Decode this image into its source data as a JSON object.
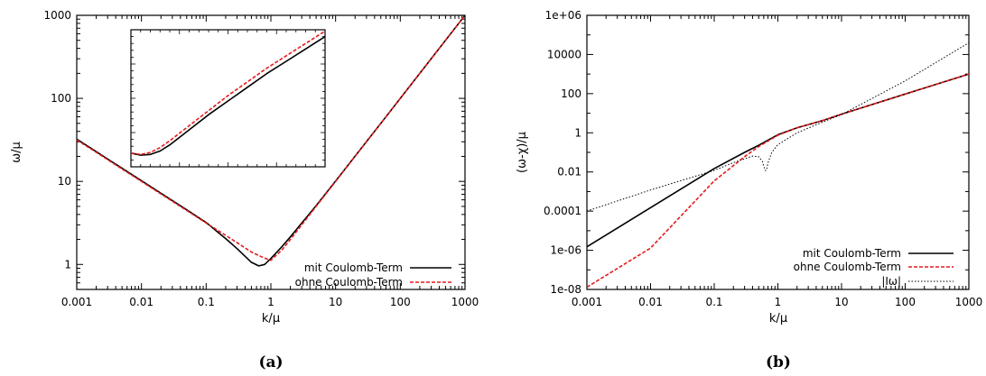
{
  "chart_data": [
    {
      "panel": "a",
      "type": "line",
      "caption": "(a)",
      "xlabel": "k/μ",
      "ylabel": "ω/μ",
      "xscale": "log",
      "yscale": "log",
      "xlim": [
        0.001,
        1000
      ],
      "ylim": [
        0.5,
        1000
      ],
      "xticks": [
        "0.001",
        "0.01",
        "0.1",
        "1",
        "10",
        "100",
        "1000"
      ],
      "yticks": [
        "1",
        "10",
        "100",
        "1000"
      ],
      "legend": "bottom-right",
      "series": [
        {
          "name": "mit Coulomb-Term",
          "color": "#000000",
          "style": "solid",
          "x": [
            0.001,
            0.002,
            0.005,
            0.01,
            0.02,
            0.05,
            0.1,
            0.2,
            0.3,
            0.5,
            0.65,
            0.8,
            1,
            1.5,
            2,
            3,
            5,
            10,
            20,
            50,
            100,
            200,
            500,
            1000
          ],
          "y": [
            32.3,
            22.8,
            14.4,
            10.2,
            7.2,
            4.55,
            3.2,
            2.05,
            1.55,
            1.06,
            0.96,
            1.0,
            1.18,
            1.65,
            2.15,
            3.15,
            5.1,
            10.1,
            20.1,
            50,
            100,
            200,
            500,
            1000
          ]
        },
        {
          "name": "ohne Coulomb-Term",
          "color": "#e41a1c",
          "style": "dashed",
          "x": [
            0.001,
            0.002,
            0.005,
            0.01,
            0.02,
            0.05,
            0.1,
            0.2,
            0.3,
            0.5,
            0.65,
            0.8,
            1,
            1.5,
            2,
            3,
            5,
            10,
            20,
            50,
            100,
            200,
            500,
            1000
          ],
          "y": [
            31.6,
            22.4,
            14.1,
            10.0,
            7.07,
            4.47,
            3.16,
            2.24,
            1.83,
            1.41,
            1.28,
            1.19,
            1.12,
            1.51,
            2.0,
            3.0,
            5.0,
            10.0,
            20.0,
            50,
            100,
            200,
            500,
            1000
          ]
        }
      ],
      "inset": {
        "xlim": [
          0,
          1
        ],
        "ylim": [
          0,
          1
        ],
        "series": [
          {
            "name": "mit Coulomb-Term",
            "color": "#000000",
            "style": "solid",
            "x": [
              0,
              0.05,
              0.1,
              0.15,
              0.2,
              0.3,
              0.4,
              0.5,
              0.6,
              0.7,
              0.8,
              0.9,
              1.0
            ],
            "y": [
              0.1,
              0.085,
              0.09,
              0.115,
              0.16,
              0.27,
              0.38,
              0.48,
              0.58,
              0.68,
              0.77,
              0.86,
              0.95
            ]
          },
          {
            "name": "ohne Coulomb-Term",
            "color": "#e41a1c",
            "style": "dashed",
            "x": [
              0,
              0.05,
              0.1,
              0.15,
              0.2,
              0.3,
              0.4,
              0.5,
              0.6,
              0.7,
              0.8,
              0.9,
              1.0
            ],
            "y": [
              0.1,
              0.09,
              0.105,
              0.14,
              0.19,
              0.3,
              0.41,
              0.52,
              0.62,
              0.72,
              0.81,
              0.9,
              0.99
            ]
          }
        ]
      }
    },
    {
      "panel": "b",
      "type": "line",
      "caption": "(b)",
      "xlabel": "k/μ",
      "ylabel": "(ω-χ)/μ",
      "xscale": "log",
      "yscale": "log",
      "xlim": [
        0.001,
        1000
      ],
      "ylim": [
        1e-08,
        1000000.0
      ],
      "xticks": [
        "0.001",
        "0.01",
        "0.1",
        "1",
        "10",
        "100",
        "1000"
      ],
      "yticks": [
        "1e-08",
        "1e-06",
        "0.0001",
        "0.01",
        "1",
        "100",
        "10000",
        "1e+06"
      ],
      "legend": "bottom-right",
      "series": [
        {
          "name": "mit Coulomb-Term",
          "color": "#000000",
          "style": "solid",
          "x": [
            0.001,
            0.01,
            0.1,
            0.3,
            0.5,
            1,
            2,
            5,
            10,
            100,
            1000
          ],
          "y": [
            1.5e-06,
            0.00015,
            0.015,
            0.1,
            0.23,
            0.8,
            1.8,
            4.2,
            9,
            95,
            1000
          ]
        },
        {
          "name": "ohne Coulomb-Term",
          "color": "#e41a1c",
          "style": "dashed",
          "x": [
            0.001,
            0.01,
            0.1,
            0.3,
            0.5,
            1,
            2,
            5,
            10,
            100,
            1000
          ],
          "y": [
            1.3e-08,
            1.3e-06,
            0.0035,
            0.06,
            0.2,
            0.75,
            1.8,
            4.2,
            9,
            95,
            1000
          ]
        },
        {
          "name": "|Iω|",
          "color": "#000000",
          "style": "dotted",
          "x": [
            0.001,
            0.01,
            0.05,
            0.1,
            0.2,
            0.4,
            0.5,
            0.57,
            0.6,
            0.63,
            0.66,
            0.7,
            0.8,
            1,
            2,
            5,
            10,
            100,
            1000
          ],
          "y": [
            0.0001,
            0.0012,
            0.006,
            0.012,
            0.03,
            0.065,
            0.06,
            0.035,
            0.02,
            0.012,
            0.012,
            0.03,
            0.1,
            0.25,
            1,
            3.5,
            8.5,
            450,
            40000
          ]
        }
      ]
    }
  ]
}
